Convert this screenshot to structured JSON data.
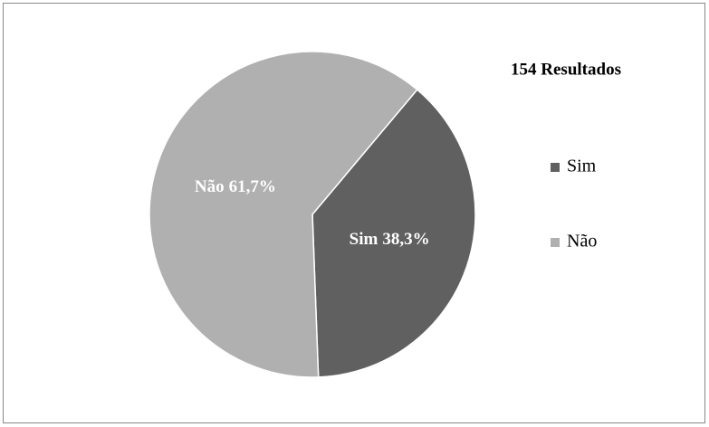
{
  "chart_data": {
    "type": "pie",
    "title": "154 Resultados",
    "categories": [
      "Sim",
      "Não"
    ],
    "values": [
      38.3,
      61.7
    ],
    "value_labels": [
      "38,3%",
      "61,7%"
    ],
    "colors": [
      "#606060",
      "#b0b0b0"
    ],
    "legend": "right"
  }
}
